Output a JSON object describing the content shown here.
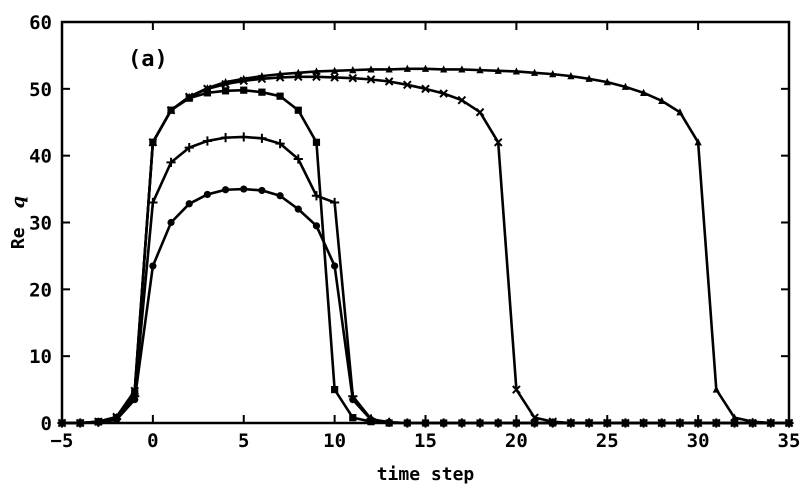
{
  "chart_data": {
    "type": "line",
    "panel_label": "(a)",
    "xlabel": "time step",
    "ylabel_prefix": "Re",
    "ylabel_symbol": "q",
    "xlim": [
      -5,
      35
    ],
    "ylim": [
      0,
      60
    ],
    "xticks": [
      -5,
      0,
      5,
      10,
      15,
      20,
      25,
      30,
      35
    ],
    "yticks": [
      0,
      10,
      20,
      30,
      40,
      50,
      60
    ],
    "grid": false,
    "legend": "none",
    "colors": {
      "line": "#000000",
      "background": "#ffffff"
    },
    "series": [
      {
        "marker": "circle",
        "x": [
          -5,
          -4,
          -3,
          -2,
          -1,
          0,
          1,
          2,
          3,
          4,
          5,
          6,
          7,
          8,
          9,
          10,
          11,
          12,
          13,
          14,
          15,
          16,
          17,
          18,
          19,
          20,
          21,
          22,
          23,
          24,
          25,
          26,
          27,
          28,
          29,
          30,
          31,
          32,
          33,
          34,
          35
        ],
        "y": [
          0,
          0,
          0.1,
          0.5,
          3.5,
          23.5,
          30,
          32.8,
          34.2,
          34.9,
          35,
          34.8,
          34,
          32,
          29.5,
          23.5,
          3.5,
          0.5,
          0.1,
          0,
          0,
          0,
          0,
          0,
          0,
          0,
          0,
          0,
          0,
          0,
          0,
          0,
          0,
          0,
          0,
          0,
          0,
          0,
          0,
          0,
          0
        ]
      },
      {
        "marker": "plus",
        "x": [
          -5,
          -4,
          -3,
          -2,
          -1,
          0,
          1,
          2,
          3,
          4,
          5,
          6,
          7,
          8,
          9,
          10,
          11,
          12,
          13,
          14,
          15,
          16,
          17,
          18,
          19,
          20,
          21,
          22,
          23,
          24,
          25,
          26,
          27,
          28,
          29,
          30,
          31,
          32,
          33,
          34,
          35
        ],
        "y": [
          0,
          0,
          0.1,
          0.6,
          4,
          33,
          39,
          41.2,
          42.2,
          42.7,
          42.8,
          42.6,
          41.8,
          39.5,
          34,
          33,
          4,
          0.6,
          0.1,
          0,
          0,
          0,
          0,
          0,
          0,
          0,
          0,
          0,
          0,
          0,
          0,
          0,
          0,
          0,
          0,
          0,
          0,
          0,
          0,
          0,
          0
        ]
      },
      {
        "marker": "square",
        "x": [
          -5,
          -4,
          -3,
          -2,
          -1,
          0,
          1,
          2,
          3,
          4,
          5,
          6,
          7,
          8,
          9,
          10,
          11,
          12,
          13,
          14,
          15,
          16,
          17,
          18,
          19,
          20,
          21,
          22,
          23,
          24,
          25,
          26,
          27,
          28,
          29,
          30,
          31,
          32,
          33,
          34,
          35
        ],
        "y": [
          0,
          0,
          0.2,
          0.8,
          4.5,
          42,
          46.8,
          48.6,
          49.4,
          49.7,
          49.8,
          49.5,
          48.9,
          46.8,
          42,
          5,
          0.8,
          0.2,
          0,
          0,
          0,
          0,
          0,
          0,
          0,
          0,
          0,
          0,
          0,
          0,
          0,
          0,
          0,
          0,
          0,
          0,
          0,
          0,
          0,
          0,
          0
        ]
      },
      {
        "marker": "x",
        "x": [
          -5,
          -4,
          -3,
          -2,
          -1,
          0,
          1,
          2,
          3,
          4,
          5,
          6,
          7,
          8,
          9,
          10,
          11,
          12,
          13,
          14,
          15,
          16,
          17,
          18,
          19,
          20,
          21,
          22,
          23,
          24,
          25,
          26,
          27,
          28,
          29,
          30,
          31,
          32,
          33,
          34,
          35
        ],
        "y": [
          0,
          0,
          0.2,
          0.9,
          4.8,
          42,
          46.8,
          48.8,
          50,
          50.7,
          51.2,
          51.5,
          51.7,
          51.8,
          51.8,
          51.7,
          51.6,
          51.4,
          51.1,
          50.6,
          50,
          49.3,
          48.3,
          46.5,
          42,
          5,
          0.8,
          0.2,
          0,
          0,
          0,
          0,
          0,
          0,
          0,
          0,
          0,
          0,
          0,
          0,
          0
        ]
      },
      {
        "marker": "triangle",
        "x": [
          -5,
          -4,
          -3,
          -2,
          -1,
          0,
          1,
          2,
          3,
          4,
          5,
          6,
          7,
          8,
          9,
          10,
          11,
          12,
          13,
          14,
          15,
          16,
          17,
          18,
          19,
          20,
          21,
          22,
          23,
          24,
          25,
          26,
          27,
          28,
          29,
          30,
          31,
          32,
          33,
          34,
          35
        ],
        "y": [
          0,
          0,
          0.2,
          0.9,
          4.8,
          42,
          46.8,
          48.8,
          50.1,
          51,
          51.5,
          51.9,
          52.2,
          52.4,
          52.6,
          52.7,
          52.8,
          52.9,
          52.9,
          53,
          53,
          52.9,
          52.9,
          52.8,
          52.7,
          52.6,
          52.4,
          52.2,
          51.9,
          51.5,
          51,
          50.3,
          49.4,
          48.2,
          46.5,
          42,
          5,
          0.8,
          0.2,
          0,
          0
        ]
      }
    ]
  }
}
